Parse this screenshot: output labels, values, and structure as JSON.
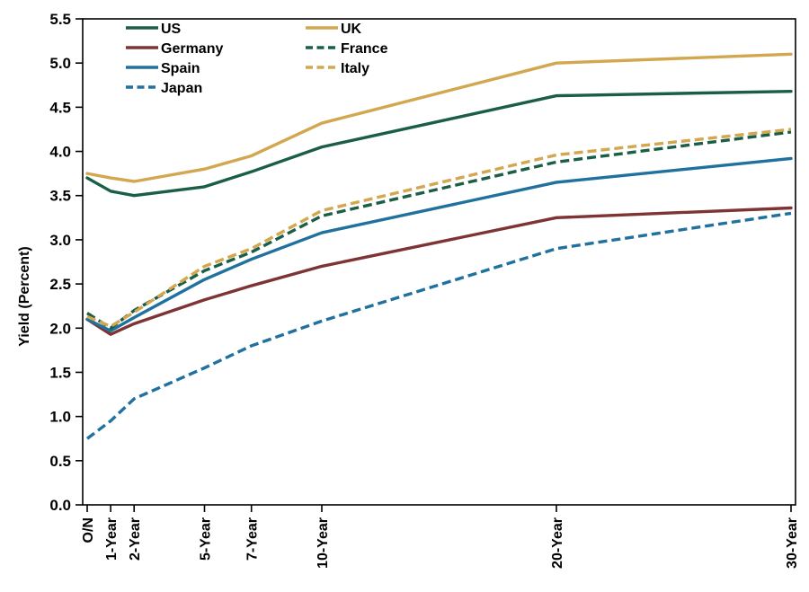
{
  "chart_data": {
    "type": "line",
    "title": "",
    "xlabel": "",
    "ylabel": "Yield (Percent)",
    "ylim": [
      0.0,
      5.5
    ],
    "ytick_step": 0.5,
    "grid": false,
    "legend_position": "top-left-two-columns",
    "categories": [
      "O/N",
      "1-Year",
      "2-Year",
      "5-Year",
      "7-Year",
      "10-Year",
      "20-Year",
      "30-Year"
    ],
    "x_years": [
      0,
      1,
      2,
      5,
      7,
      10,
      20,
      30
    ],
    "series": [
      {
        "name": "US",
        "color": "#1B5E46",
        "style": "solid",
        "values": [
          3.7,
          3.55,
          3.5,
          3.6,
          3.77,
          4.05,
          4.63,
          4.68
        ]
      },
      {
        "name": "UK",
        "color": "#D2A74F",
        "style": "solid",
        "values": [
          3.75,
          3.7,
          3.66,
          3.8,
          3.95,
          4.32,
          5.0,
          5.1
        ]
      },
      {
        "name": "Germany",
        "color": "#7E3434",
        "style": "solid",
        "values": [
          2.1,
          1.93,
          2.05,
          2.32,
          2.48,
          2.7,
          3.25,
          3.36
        ]
      },
      {
        "name": "Spain",
        "color": "#20719E",
        "style": "solid",
        "values": [
          2.1,
          1.97,
          2.12,
          2.55,
          2.78,
          3.08,
          3.65,
          3.92
        ]
      },
      {
        "name": "France",
        "color": "#1B5E46",
        "style": "dashed",
        "values": [
          2.17,
          2.0,
          2.2,
          2.65,
          2.86,
          3.27,
          3.88,
          4.22
        ]
      },
      {
        "name": "Italy",
        "color": "#D2A74F",
        "style": "dashed",
        "values": [
          2.13,
          2.02,
          2.18,
          2.7,
          2.9,
          3.33,
          3.96,
          4.25
        ]
      },
      {
        "name": "Japan",
        "color": "#20719E",
        "style": "dashed",
        "values": [
          0.75,
          0.95,
          1.2,
          1.55,
          1.8,
          2.08,
          2.9,
          3.3
        ]
      }
    ],
    "legend_columns": [
      [
        "US",
        "Germany",
        "Spain",
        "Japan"
      ],
      [
        "UK",
        "France",
        "Italy"
      ]
    ]
  }
}
